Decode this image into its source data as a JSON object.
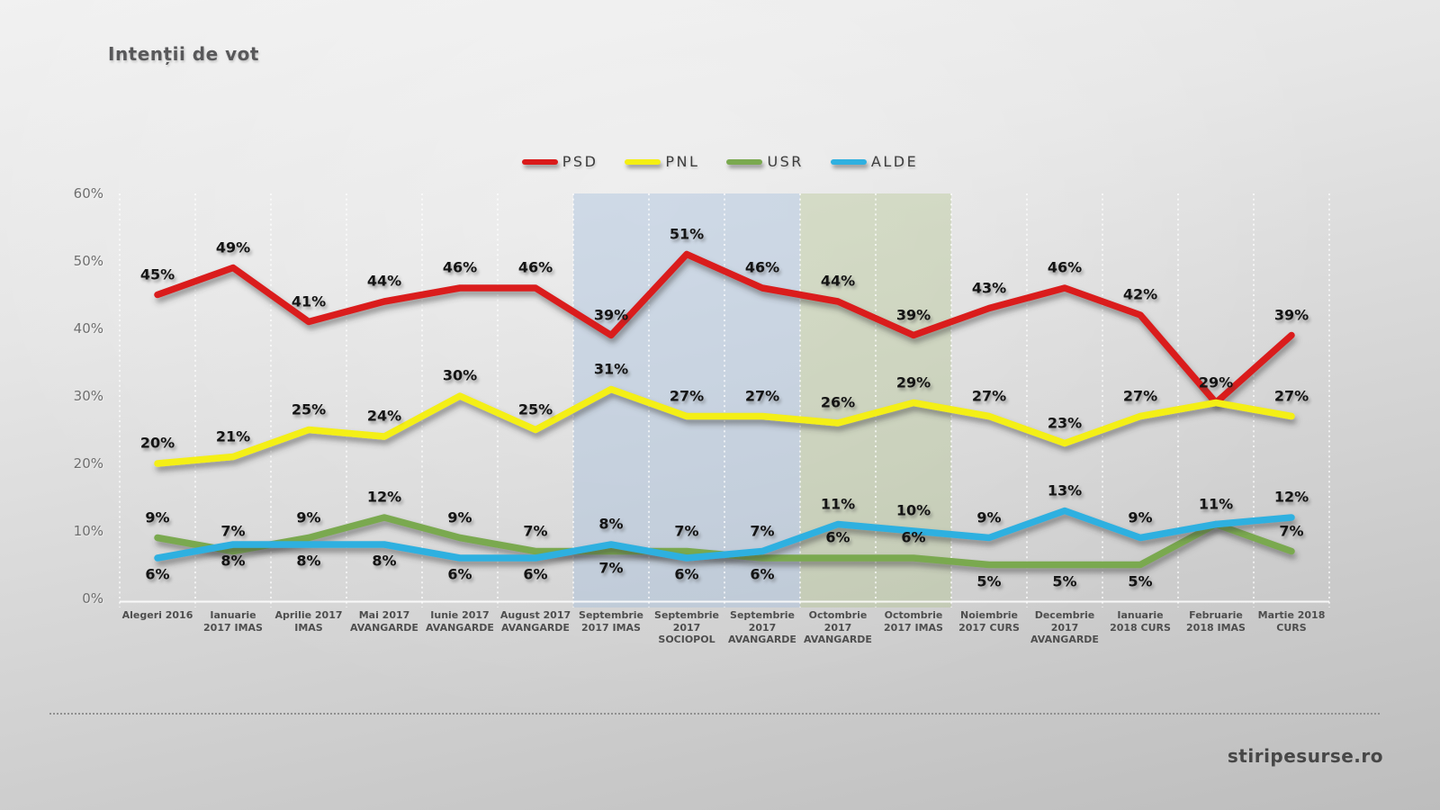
{
  "title": "Intenții de vot",
  "watermark": "stiripesurse.ro",
  "chart_data": {
    "type": "line",
    "title": "Intenții de vot",
    "ylabel": "",
    "xlabel": "",
    "ylim": [
      0,
      60
    ],
    "yticks": [
      "0%",
      "10%",
      "20%",
      "30%",
      "40%",
      "50%",
      "60%"
    ],
    "grid": "vertical dotted white gridlines between categories",
    "legend_position": "top-center",
    "categories": [
      "Alegeri 2016",
      "Ianuarie 2017 IMAS",
      "Aprilie 2017 IMAS",
      "Mai 2017 AVANGARDE",
      "Iunie 2017 AVANGARDE",
      "August 2017 AVANGARDE",
      "Septembrie 2017 IMAS",
      "Septembrie 2017 SOCIOPOL",
      "Septembrie 2017 AVANGARDE",
      "Octombrie 2017 AVANGARDE",
      "Octombrie 2017 IMAS",
      "Noiembrie 2017 CURS",
      "Decembrie 2017 AVANGARDE",
      "Ianuarie 2018 CURS",
      "Februarie 2018 IMAS",
      "Martie 2018 CURS"
    ],
    "category_label_lines": [
      [
        "Alegeri 2016"
      ],
      [
        "Ianuarie",
        "2017 IMAS"
      ],
      [
        "Aprilie 2017",
        "IMAS"
      ],
      [
        "Mai 2017",
        "AVANGARDE"
      ],
      [
        "Iunie 2017",
        "AVANGARDE"
      ],
      [
        "August 2017",
        "AVANGARDE"
      ],
      [
        "Septembrie",
        "2017 IMAS"
      ],
      [
        "Septembrie",
        "2017",
        "SOCIOPOL"
      ],
      [
        "Septembrie",
        "2017",
        "AVANGARDE"
      ],
      [
        "Octombrie",
        "2017",
        "AVANGARDE"
      ],
      [
        "Octombrie",
        "2017 IMAS"
      ],
      [
        "Noiembrie",
        "2017 CURS"
      ],
      [
        "Decembrie",
        "2017",
        "AVANGARDE"
      ],
      [
        "Ianuarie",
        "2018 CURS"
      ],
      [
        "Februarie",
        "2018 IMAS"
      ],
      [
        "Martie 2018",
        "CURS"
      ]
    ],
    "series": [
      {
        "name": "PSD",
        "color": "#da1a1a",
        "values": [
          45,
          49,
          41,
          44,
          46,
          46,
          39,
          51,
          46,
          44,
          39,
          43,
          46,
          42,
          29,
          39
        ],
        "label_positions": [
          "above",
          "above",
          "above",
          "above",
          "above",
          "above",
          "above",
          "above",
          "above",
          "above",
          "above",
          "above",
          "above",
          "above",
          "above",
          "above"
        ]
      },
      {
        "name": "PNL",
        "color": "#f4ef12",
        "values": [
          20,
          21,
          25,
          24,
          30,
          25,
          31,
          27,
          27,
          26,
          29,
          27,
          23,
          27,
          29,
          27
        ],
        "label_positions": [
          "above",
          "above",
          "above",
          "above",
          "above",
          "above",
          "above",
          "above",
          "above",
          "above",
          "above",
          "above",
          "above",
          "above",
          "hidden",
          "above"
        ]
      },
      {
        "name": "USR",
        "color": "#7aa94f",
        "values": [
          9,
          7,
          9,
          12,
          9,
          7,
          7,
          7,
          6,
          6,
          6,
          5,
          5,
          5,
          11,
          7
        ],
        "label_positions": [
          "above",
          "above",
          "above",
          "above",
          "above",
          "above",
          "below",
          "above",
          "below",
          "above",
          "above",
          "below",
          "below",
          "below",
          "hidden",
          "above"
        ]
      },
      {
        "name": "ALDE",
        "color": "#2fb0e0",
        "values": [
          6,
          8,
          8,
          8,
          6,
          6,
          8,
          6,
          7,
          11,
          10,
          9,
          13,
          9,
          11,
          12
        ],
        "label_positions": [
          "below",
          "below",
          "below",
          "below",
          "below",
          "below",
          "above",
          "below",
          "above",
          "above",
          "above",
          "above",
          "above",
          "above",
          "above",
          "above"
        ]
      }
    ],
    "highlight_bands": [
      {
        "start_category_index": 6,
        "end_category_index": 8,
        "color": "rgba(168,193,222,0.45)"
      },
      {
        "start_category_index": 9,
        "end_category_index": 10,
        "color": "rgba(175,194,140,0.38)"
      }
    ]
  }
}
